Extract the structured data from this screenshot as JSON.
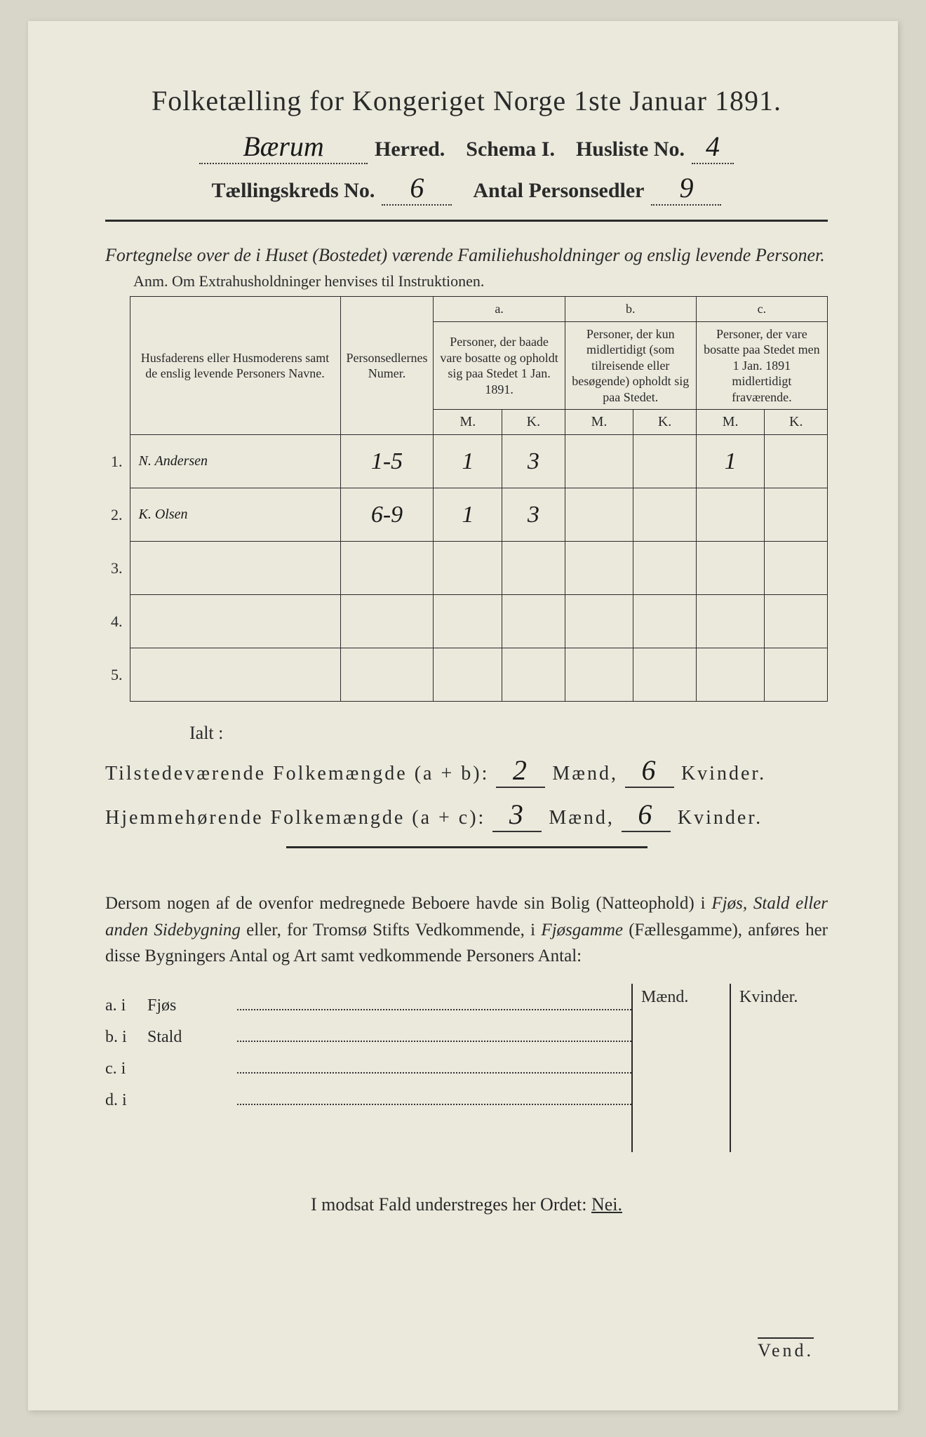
{
  "header": {
    "title": "Folketælling for Kongeriget Norge 1ste Januar 1891.",
    "herred_value": "Bærum",
    "herred_label": "Herred.",
    "schema_label": "Schema I.",
    "husliste_label": "Husliste No.",
    "husliste_value": "4",
    "kreds_label": "Tællingskreds No.",
    "kreds_value": "6",
    "personsedler_label": "Antal Personsedler",
    "personsedler_value": "9"
  },
  "fortegnelse": "Fortegnelse over de i Huset (Bostedet) værende Familiehusholdninger og enslig levende Personer.",
  "anm": "Anm. Om Extrahusholdninger henvises til Instruktionen.",
  "table": {
    "col_name": "Husfaderens eller Husmoderens samt de enslig levende Personers Navne.",
    "col_numer": "Personsedlernes Numer.",
    "col_a_label": "a.",
    "col_a": "Personer, der baade vare bosatte og opholdt sig paa Stedet 1 Jan. 1891.",
    "col_b_label": "b.",
    "col_b": "Personer, der kun midlertidigt (som tilreisende eller besøgende) opholdt sig paa Stedet.",
    "col_c_label": "c.",
    "col_c": "Personer, der vare bosatte paa Stedet men 1 Jan. 1891 midlertidigt fraværende.",
    "m": "M.",
    "k": "K.",
    "rows": [
      {
        "n": "1.",
        "name": "N. Andersen",
        "numer": "1-5",
        "a_m": "1",
        "a_k": "3",
        "b_m": "",
        "b_k": "",
        "c_m": "1",
        "c_k": ""
      },
      {
        "n": "2.",
        "name": "K. Olsen",
        "numer": "6-9",
        "a_m": "1",
        "a_k": "3",
        "b_m": "",
        "b_k": "",
        "c_m": "",
        "c_k": ""
      },
      {
        "n": "3.",
        "name": "",
        "numer": "",
        "a_m": "",
        "a_k": "",
        "b_m": "",
        "b_k": "",
        "c_m": "",
        "c_k": ""
      },
      {
        "n": "4.",
        "name": "",
        "numer": "",
        "a_m": "",
        "a_k": "",
        "b_m": "",
        "b_k": "",
        "c_m": "",
        "c_k": ""
      },
      {
        "n": "5.",
        "name": "",
        "numer": "",
        "a_m": "",
        "a_k": "",
        "b_m": "",
        "b_k": "",
        "c_m": "",
        "c_k": ""
      }
    ]
  },
  "ialt": "Ialt :",
  "totals": {
    "tilstede_label": "Tilstedeværende Folkemængde (a + b):",
    "tilstede_m": "2",
    "tilstede_k": "6",
    "hjemme_label": "Hjemmehørende Folkemængde (a + c):",
    "hjemme_m": "3",
    "hjemme_k": "6",
    "maend": "Mænd,",
    "kvinder": "Kvinder."
  },
  "para": {
    "p1": "Dersom nogen af de ovenfor medregnede Beboere havde sin Bolig (Natteophold) i ",
    "em1": "Fjøs, Stald eller anden Sidebygning",
    "p2": " eller, for Tromsø Stifts Vedkommende, i ",
    "em2": "Fjøsgamme",
    "p3": " (Fællesgamme), anføres her disse Bygningers Antal og Art samt vedkommende Personers Antal:"
  },
  "side": {
    "maend": "Mænd.",
    "kvinder": "Kvinder.",
    "lines": [
      {
        "lab": "a.  i",
        "txt": "Fjøs"
      },
      {
        "lab": "b.  i",
        "txt": "Stald"
      },
      {
        "lab": "c.  i",
        "txt": ""
      },
      {
        "lab": "d.  i",
        "txt": ""
      }
    ]
  },
  "nei": {
    "pre": "I modsat Fald understreges her Ordet: ",
    "word": "Nei."
  },
  "vend": "Vend."
}
